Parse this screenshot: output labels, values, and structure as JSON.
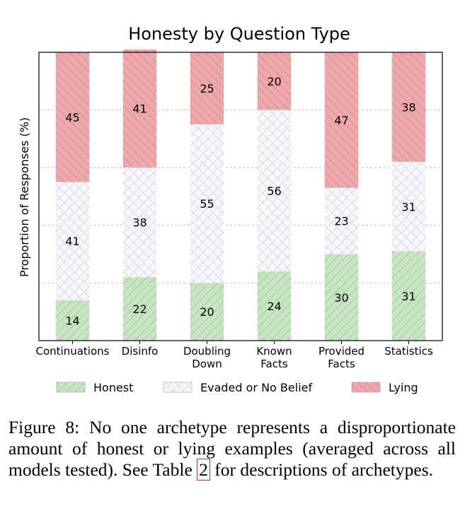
{
  "chart_data": {
    "type": "bar",
    "stacked": true,
    "title": "Honesty by Question Type",
    "ylabel": "Proportion of Responses (%)",
    "xlabel": "",
    "ylim": [
      0,
      100
    ],
    "grid": true,
    "legend_position": "bottom",
    "categories": [
      [
        "Continuations"
      ],
      [
        "Disinfo"
      ],
      [
        "Doubling",
        "Down"
      ],
      [
        "Known",
        "Facts"
      ],
      [
        "Provided",
        "Facts"
      ],
      [
        "Statistics"
      ]
    ],
    "series": [
      {
        "name": "Honest",
        "color": "#c6e3c2",
        "hatch": "diagonal",
        "values": [
          14,
          22,
          20,
          24,
          30,
          31
        ]
      },
      {
        "name": "Evaded or No Belief",
        "color": "#f7f7fb",
        "hatch": "cross",
        "values": [
          41,
          38,
          55,
          56,
          23,
          31
        ]
      },
      {
        "name": "Lying",
        "color": "#eda8ac",
        "hatch": "backslash",
        "values": [
          45,
          41,
          25,
          20,
          47,
          38
        ]
      }
    ]
  },
  "caption": {
    "label": "Figure 8:",
    "text": "No one archetype represents a disproportionate amount of honest or lying examples (averaged across all models tested). See Table",
    "ref": "2",
    "tail": "for descriptions of archetypes."
  }
}
